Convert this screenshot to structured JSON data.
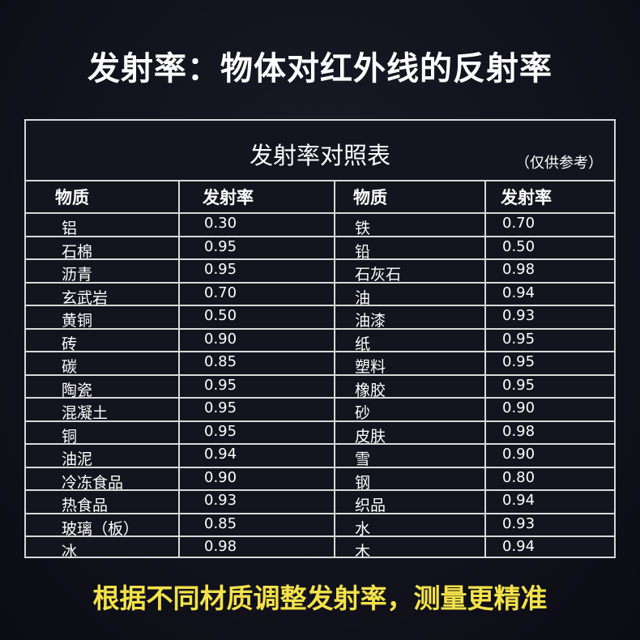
{
  "title": "发射率：物体对红外线的反射率",
  "table": {
    "caption": "发射率对照表",
    "note": "（仅供参考）",
    "headers": [
      "物质",
      "发射率",
      "物质",
      "发射率"
    ],
    "rows": [
      {
        "m1": "铝",
        "e1": "0.30",
        "m2": "铁",
        "e2": "0.70"
      },
      {
        "m1": "石棉",
        "e1": "0.95",
        "m2": "铅",
        "e2": "0.50"
      },
      {
        "m1": "沥青",
        "e1": "0.95",
        "m2": "石灰石",
        "e2": "0.98"
      },
      {
        "m1": "玄武岩",
        "e1": "0.70",
        "m2": "油",
        "e2": "0.94"
      },
      {
        "m1": "黄铜",
        "e1": "0.50",
        "m2": "油漆",
        "e2": "0.93"
      },
      {
        "m1": "砖",
        "e1": "0.90",
        "m2": "纸",
        "e2": "0.95"
      },
      {
        "m1": "碳",
        "e1": "0.85",
        "m2": "塑料",
        "e2": "0.95"
      },
      {
        "m1": "陶瓷",
        "e1": "0.95",
        "m2": "橡胶",
        "e2": "0.95"
      },
      {
        "m1": "混凝土",
        "e1": "0.95",
        "m2": "砂",
        "e2": "0.90"
      },
      {
        "m1": "铜",
        "e1": "0.95",
        "m2": "皮肤",
        "e2": "0.98"
      },
      {
        "m1": "油泥",
        "e1": "0.94",
        "m2": "雪",
        "e2": "0.90"
      },
      {
        "m1": "冷冻食品",
        "e1": "0.90",
        "m2": "钢",
        "e2": "0.80"
      },
      {
        "m1": " 热食品",
        "e1": "0.93",
        "m2": "织品",
        "e2": "0.94"
      },
      {
        "m1": "玻璃（板）",
        "e1": "0.85",
        "m2": "水",
        "e2": "0.93"
      },
      {
        "m1": "冰",
        "e1": "0.98",
        "m2": "木",
        "e2": "0.94"
      }
    ]
  },
  "footer": "根据不同材质调整发射率，测量更精准",
  "colors": {
    "background": "#12121c",
    "footer_text": "#f4e24a",
    "grid": "#d8d8d8"
  }
}
